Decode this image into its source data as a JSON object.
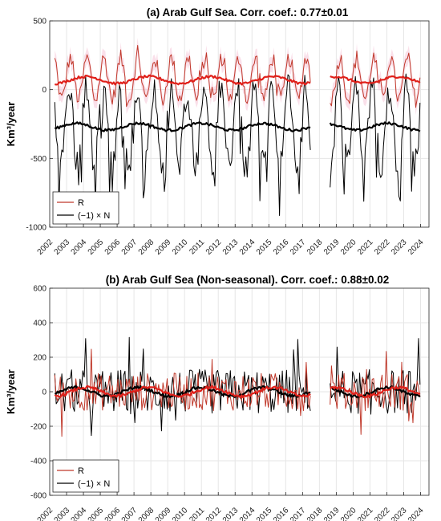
{
  "chart_data": [
    {
      "type": "line",
      "title": "(a) Arab Gulf Sea. Corr. coef.: 0.77±0.01",
      "ylabel": "Km³/year",
      "xlabel": "",
      "xlim": [
        2002,
        2024.5
      ],
      "ylim": [
        -1000,
        500
      ],
      "yticks": [
        -1000,
        -500,
        0,
        500
      ],
      "xticks": [
        2002,
        2003,
        2004,
        2005,
        2006,
        2007,
        2008,
        2009,
        2010,
        2011,
        2012,
        2013,
        2014,
        2015,
        2016,
        2017,
        2018,
        2019,
        2020,
        2021,
        2022,
        2023,
        2024
      ],
      "grid": true,
      "legend_position": "bottom-left",
      "gap": [
        2017.5,
        2018.6
      ],
      "series": [
        {
          "name": "R",
          "color": "#c0392b",
          "seasonal_amplitude": 150,
          "mean": 80,
          "noise": 60,
          "smooth_level": 70
        },
        {
          "name": "(−1) × N",
          "color": "#000000",
          "seasonal_amplitude": 280,
          "mean": -270,
          "noise": 120,
          "smooth_level": -270
        }
      ],
      "smooth_colors": {
        "R": "#e0201a",
        "N": "#000000"
      },
      "band_color": "#f6c6d8"
    },
    {
      "type": "line",
      "title": "(b) Arab Gulf Sea (Non-seasonal). Corr. coef.: 0.88±0.02",
      "ylabel": "Km³/year",
      "xlabel": "",
      "xlim": [
        2002,
        2024.5
      ],
      "ylim": [
        -600,
        600
      ],
      "yticks": [
        -600,
        -400,
        -200,
        0,
        200,
        400,
        600
      ],
      "xticks": [
        2002,
        2003,
        2004,
        2005,
        2006,
        2007,
        2008,
        2009,
        2010,
        2011,
        2012,
        2013,
        2014,
        2015,
        2016,
        2017,
        2018,
        2019,
        2020,
        2021,
        2022,
        2023,
        2024
      ],
      "grid": true,
      "legend_position": "bottom-left",
      "gap": [
        2017.5,
        2018.6
      ],
      "series": [
        {
          "name": "R",
          "color": "#c0392b",
          "seasonal_amplitude": 0,
          "mean": 0,
          "noise": 110,
          "smooth_level": 0
        },
        {
          "name": "(−1) × N",
          "color": "#000000",
          "seasonal_amplitude": 0,
          "mean": 0,
          "noise": 130,
          "smooth_level": 0
        }
      ],
      "smooth_colors": {
        "R": "#e0201a",
        "N": "#000000"
      },
      "band_color": "#f6c6d8"
    }
  ]
}
